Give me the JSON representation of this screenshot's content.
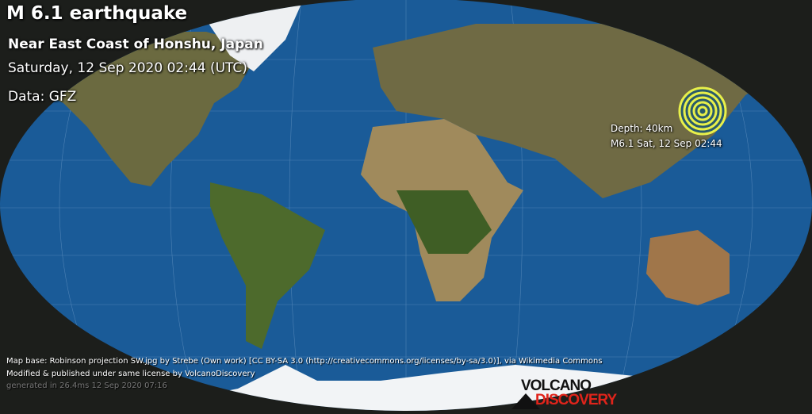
{
  "header": {
    "title": "M 6.1 earthquake",
    "region": "Near East Coast of Honshu, Japan",
    "datetime": "Saturday, 12 Sep 2020 02:44 (UTC)",
    "source": "Data: GFZ"
  },
  "marker": {
    "icon": "epicenter-rings-icon",
    "depth_label": "Depth: 40km",
    "event_label": "M6.1 Sat, 12 Sep 02:44",
    "colors": {
      "ring_light": "#e8f04a",
      "ring_dark": "#2a5a6a"
    }
  },
  "credits": {
    "line1": "Map base: Robinson projection SW.jpg by Strebe (Own work) [CC BY-SA 3.0 (http://creativecommons.org/licenses/by-sa/3.0)], via Wikimedia Commons",
    "line2": "Modified & published under same license by VolcanoDiscovery",
    "line3": "generated in 26.4ms 12 Sep 2020 07:16"
  },
  "logo": {
    "top": "VOLCANO",
    "bottom": "DISCOVERY"
  },
  "colors": {
    "ocean": "#1a5b98",
    "background": "#1c1e1b",
    "land": "#7a6a45",
    "ice": "#f2f4f6"
  }
}
